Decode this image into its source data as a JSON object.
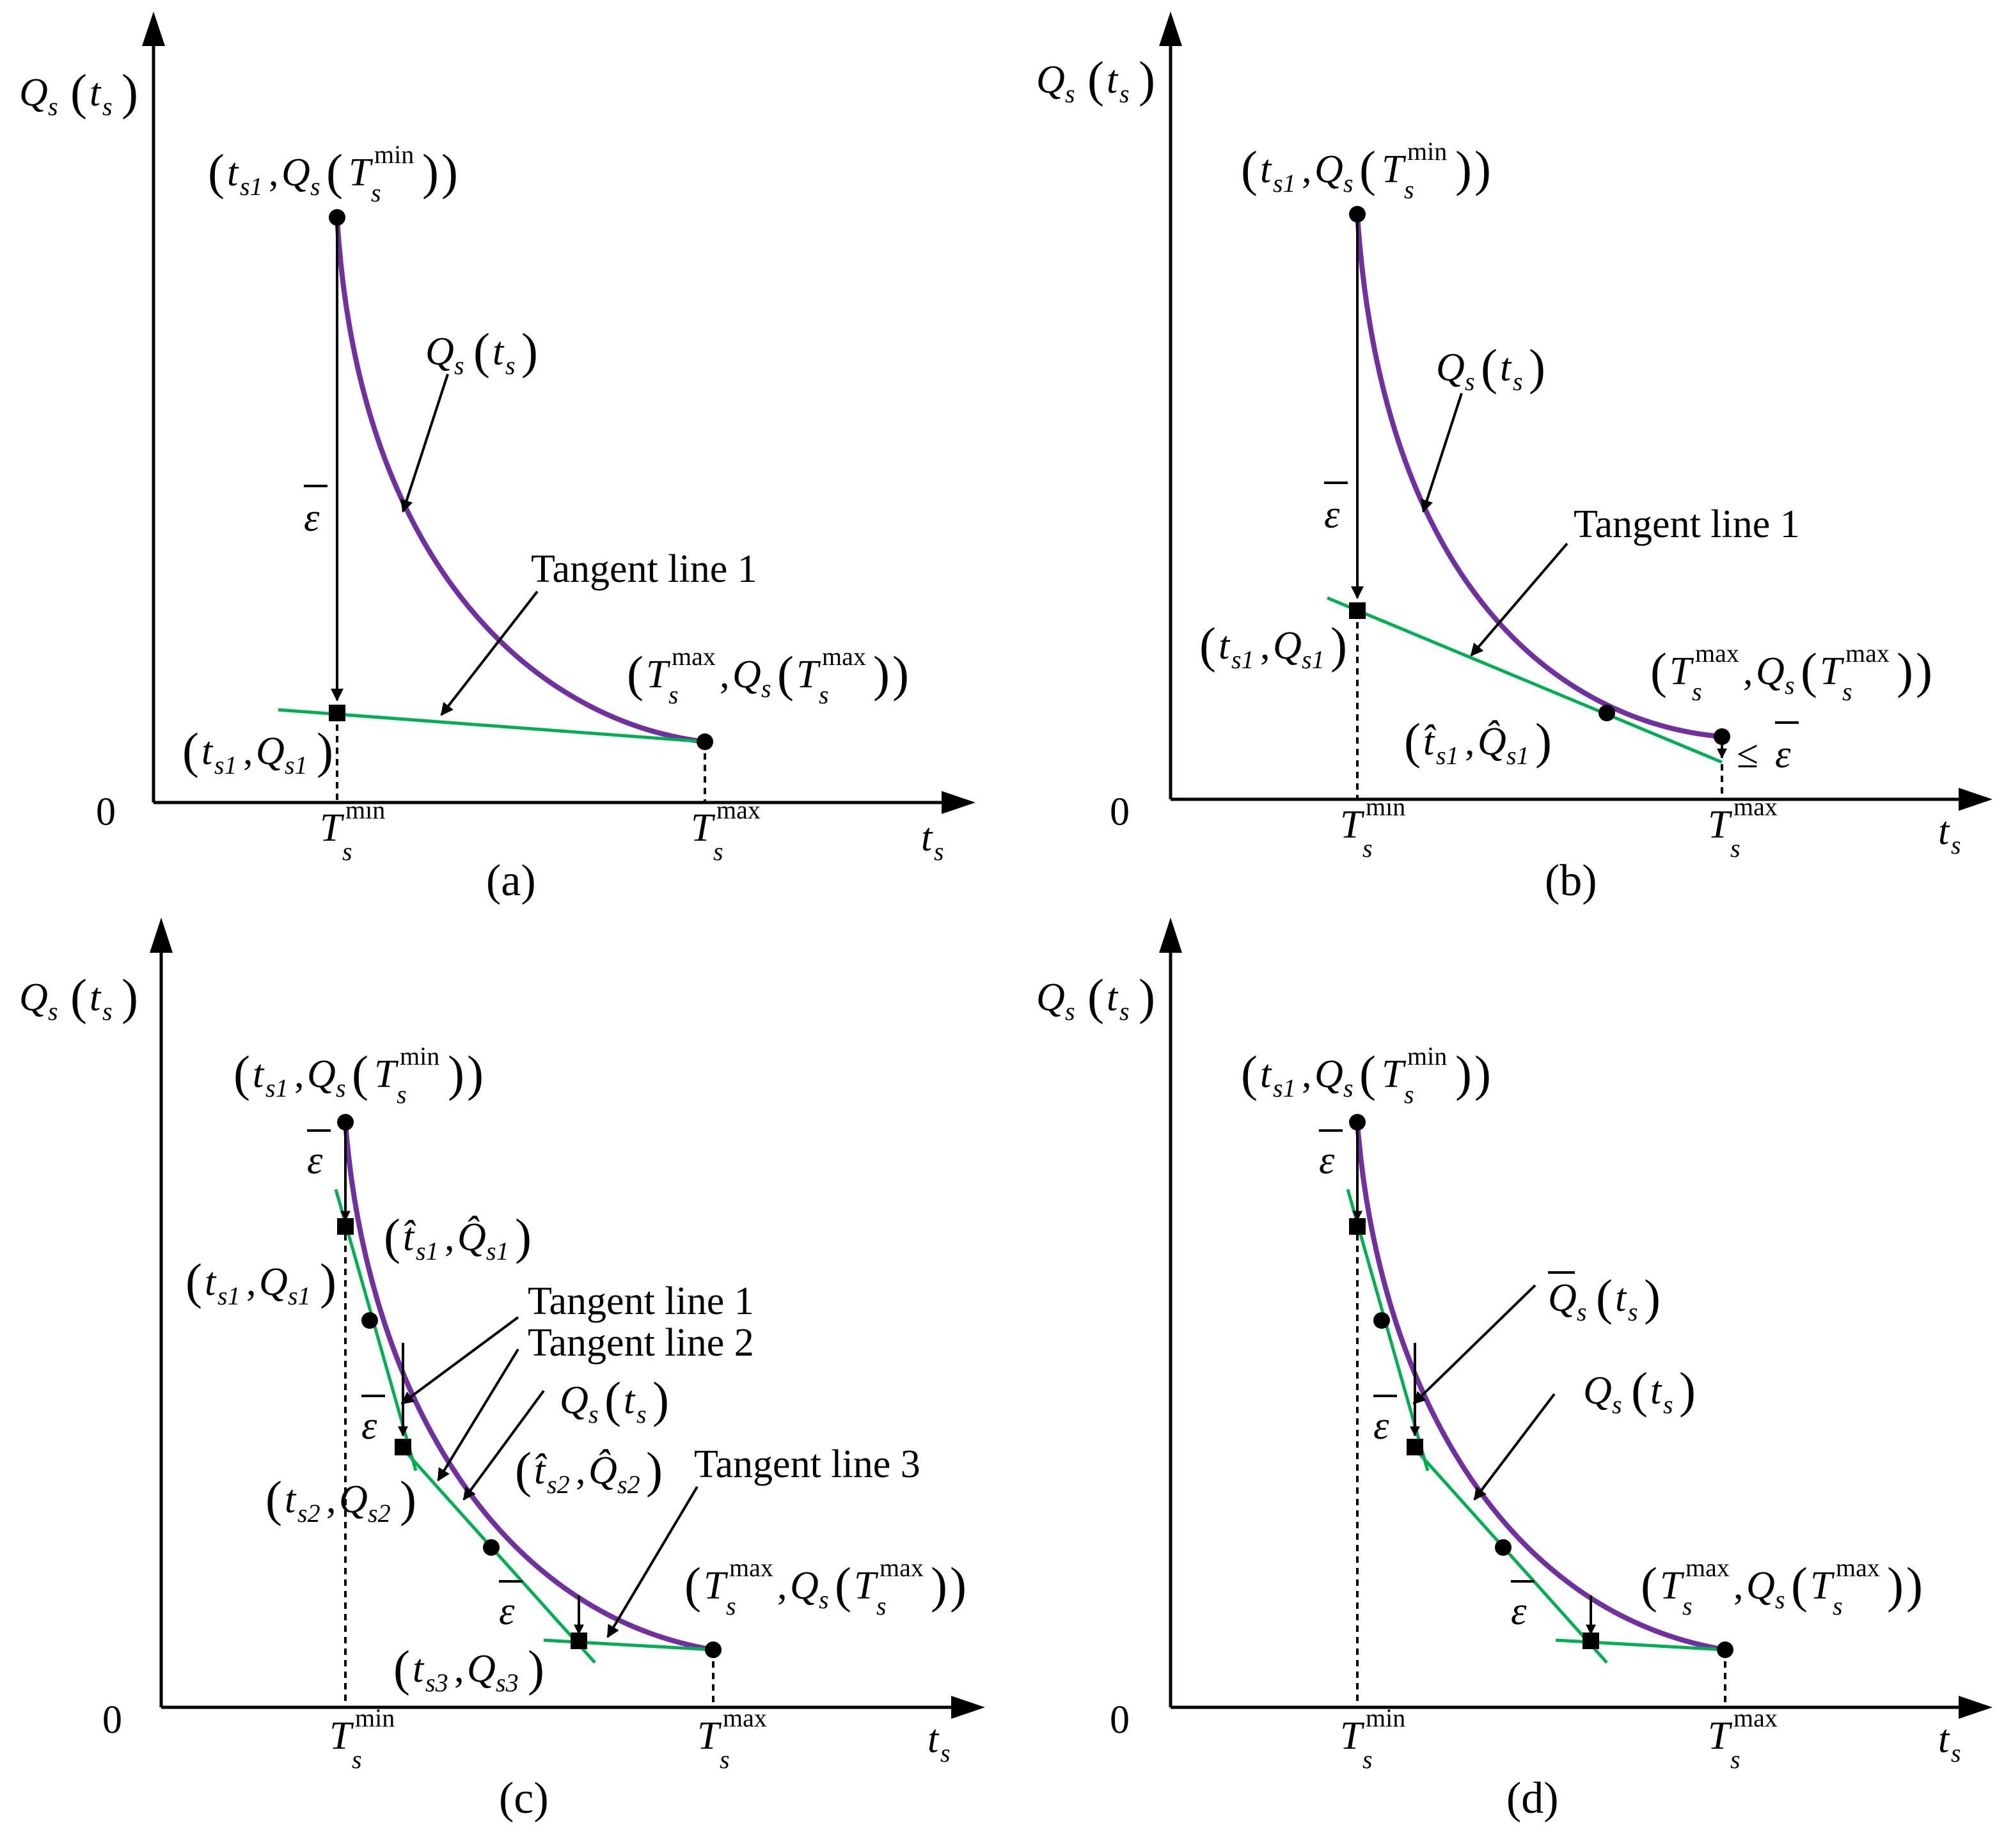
{
  "colors": {
    "curve": "#7030a0",
    "tangent": "#00b050",
    "ink": "#000000"
  },
  "text": {
    "origin": "0",
    "y_axis_label": "Q",
    "x_axis_label": "t",
    "sub_s": "s",
    "sub_s1": "s1",
    "sub_s2": "s2",
    "sub_s3": "s3",
    "sup_min": "min",
    "sup_max": "max",
    "tmin_sym": "T",
    "tmax_sym": "T",
    "epsilon": "ε",
    "leq": "≤",
    "comma": ",",
    "lparen": "(",
    "rparen": ")",
    "t": "t",
    "Q": "Q",
    "t_hat": "t̂",
    "Q_hat": "Q̂"
  },
  "labels": {
    "tangent1": "Tangent line 1",
    "tangent2": "Tangent line 2",
    "tangent3": "Tangent line 3"
  },
  "panels": [
    {
      "caption": "(a)"
    },
    {
      "caption": "(b)"
    },
    {
      "caption": "(c)"
    },
    {
      "caption": "(d)"
    }
  ]
}
